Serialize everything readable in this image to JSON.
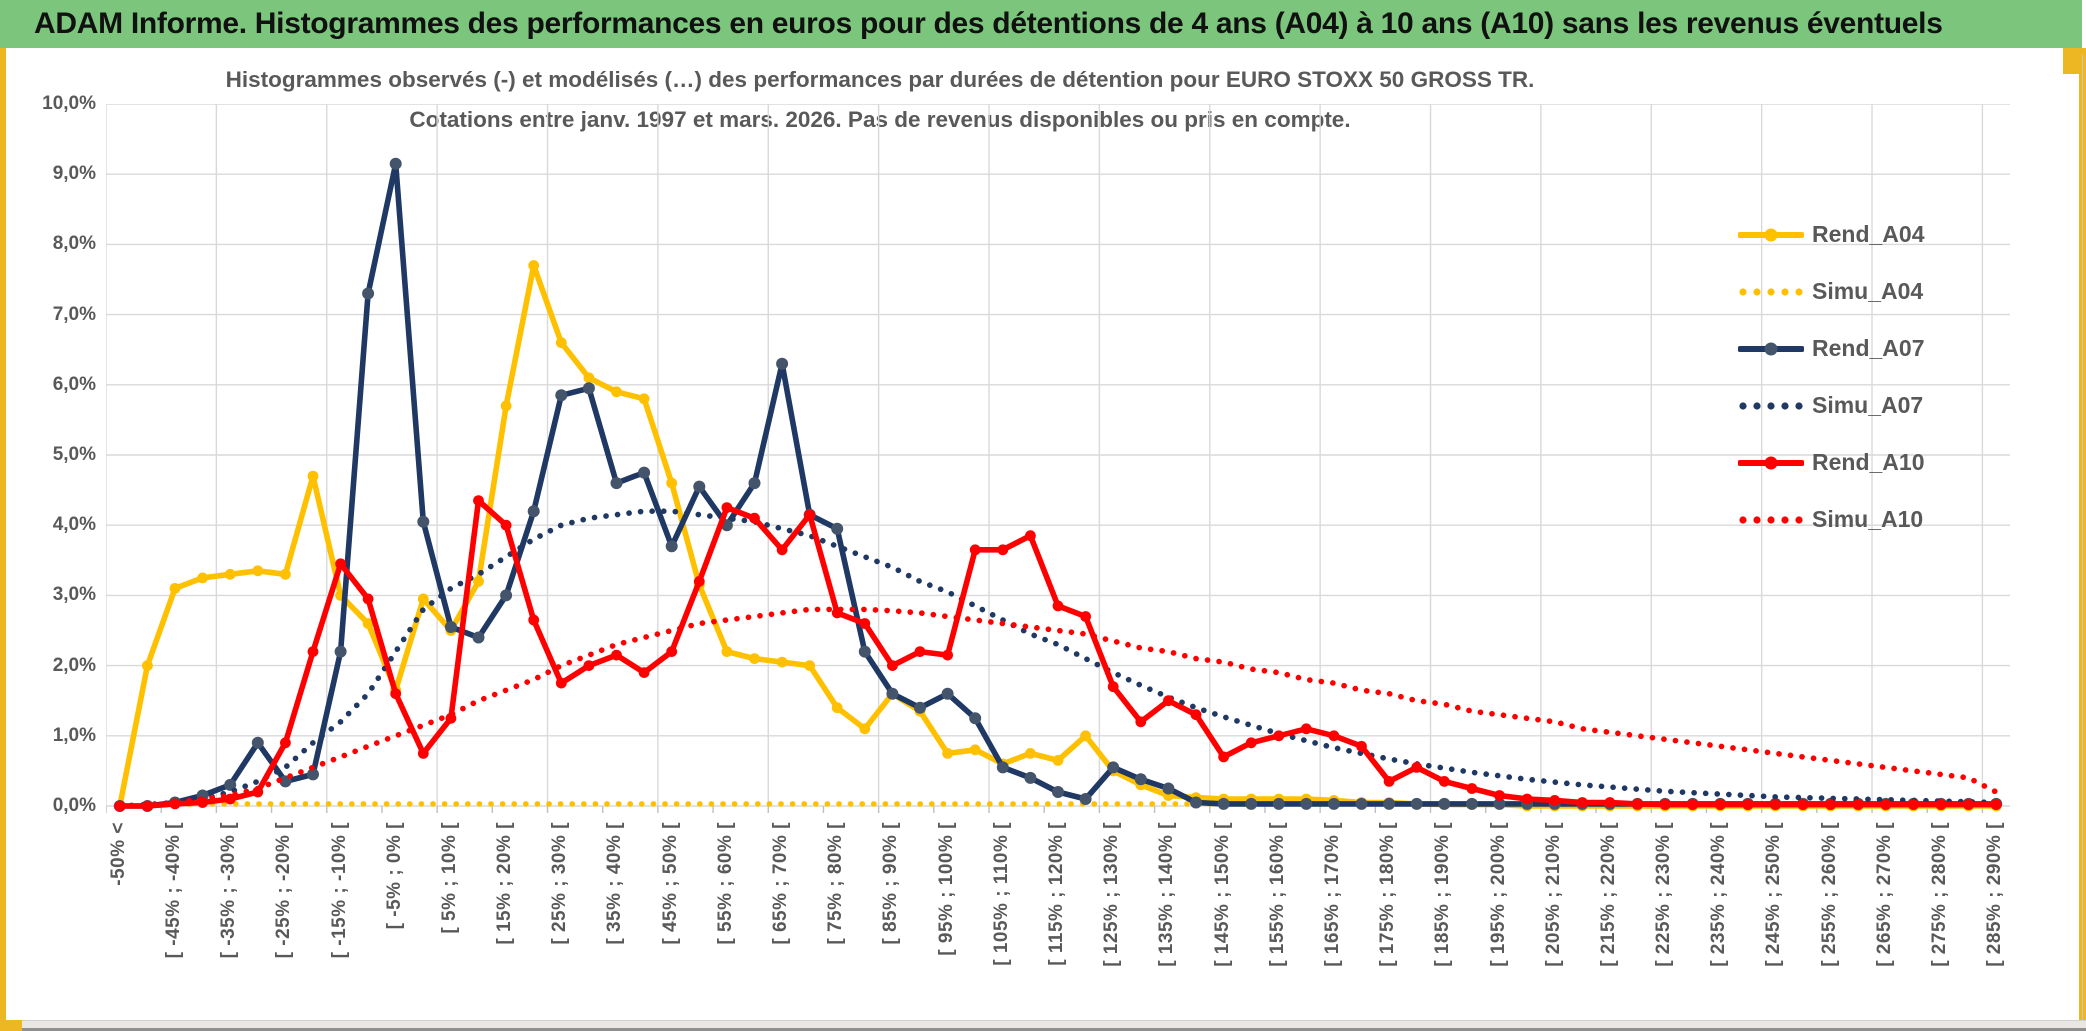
{
  "header": {
    "title": "ADAM Informe. Histogrammes des performances en euros pour des détentions de 4 ans (A04) à 10 ans (A10) sans les revenus éventuels"
  },
  "theme": {
    "banner_green": "#7cc57c",
    "edge_yellow": "#edb723",
    "gridline": "#d9d9d9",
    "axis_text": "#595959",
    "bottombar_gray": "#e9e7e4"
  },
  "chart_data": {
    "type": "line",
    "title_line1": "Histogrammes observés (-) et modélisés (…) des performances par durées de détention pour EURO STOXX 50 GROSS TR.",
    "title_line2": "Cotations entre janv. 1997 et mars. 2026. Pas de revenus disponibles ou pris en compte.",
    "ylim": [
      0,
      10
    ],
    "grid": true,
    "legend_position": "right",
    "y_tick_labels": [
      "10,0%",
      "9,0%",
      "8,0%",
      "7,0%",
      "6,0%",
      "5,0%",
      "4,0%",
      "3,0%",
      "2,0%",
      "1,0%",
      "0,0%"
    ],
    "x_tick_labels": [
      "-50% <",
      "[ -45% ; -40% [",
      "[ -35% ; -30% [",
      "[ -25% ; -20% [",
      "[ -15% ; -10% [",
      "[ -5% ; 0% [",
      "[ 5% ; 10% [",
      "[ 15% ; 20% [",
      "[ 25% ; 30% [",
      "[ 35% ; 40% [",
      "[ 45% ; 50% [",
      "[ 55% ; 60% [",
      "[ 65% ; 70% [",
      "[ 75% ; 80% [",
      "[ 85% ; 90% [",
      "[ 95% ; 100% [",
      "[ 105% ; 110% [",
      "[ 115% ; 120% [",
      "[ 125% ; 130% [",
      "[ 135% ; 140% [",
      "[ 145% ; 150% [",
      "[ 155% ; 160% [",
      "[ 165% ; 170% [",
      "[ 175% ; 180% [",
      "[ 185% ; 190% [",
      "[ 195% ; 200% [",
      "[ 205% ; 210% [",
      "[ 215% ; 220% [",
      "[ 225% ; 230% [",
      "[ 235% ; 240% [",
      "[ 245% ; 250% [",
      "[ 255% ; 260% [",
      "[ 265% ; 270% [",
      "[ 275% ; 280% [",
      "[ 285% ; 290% ["
    ],
    "bins": 69,
    "series": [
      {
        "name": "Rend_A04",
        "style": "solid",
        "color": "#FFC000",
        "marker_color": "#FFC000",
        "values": [
          0,
          2.0,
          3.1,
          3.25,
          3.3,
          3.35,
          3.3,
          4.7,
          3.0,
          2.6,
          1.65,
          2.95,
          2.5,
          3.2,
          5.7,
          7.7,
          6.6,
          6.1,
          5.9,
          5.8,
          4.6,
          3.15,
          2.2,
          2.1,
          2.05,
          2.0,
          1.4,
          1.1,
          1.6,
          1.35,
          0.75,
          0.8,
          0.6,
          0.75,
          0.65,
          1.0,
          0.5,
          0.3,
          0.15,
          0.12,
          0.1,
          0.1,
          0.1,
          0.1,
          0.08,
          0.05,
          0.05,
          0.03,
          0.02,
          0.02,
          0.02,
          0,
          0,
          0,
          0,
          0,
          0,
          0,
          0,
          0,
          0,
          0,
          0,
          0,
          0,
          0,
          0,
          0,
          0
        ]
      },
      {
        "name": "Simu_A04",
        "style": "dotted",
        "color": "#FFC000",
        "values": [
          0,
          0.01,
          0.02,
          0.03,
          0.03,
          0.03,
          0.03,
          0.03,
          0.03,
          0.03,
          0.03,
          0.03,
          0.03,
          0.03,
          0.03,
          0.03,
          0.03,
          0.03,
          0.03,
          0.03,
          0.03,
          0.03,
          0.03,
          0.03,
          0.03,
          0.03,
          0.03,
          0.03,
          0.03,
          0.03,
          0.03,
          0.03,
          0.03,
          0.03,
          0.03,
          0.03,
          0.03,
          0.03,
          0.03,
          0.03,
          0.03,
          0.03,
          0.03,
          0.03,
          0.03,
          0.03,
          0.03,
          0.03,
          0.03,
          0.03,
          0.03,
          0.03,
          0.03,
          0.03,
          0.03,
          0.03,
          0.03,
          0.03,
          0.03,
          0.03,
          0.03,
          0.03,
          0.03,
          0.03,
          0.03,
          0.03,
          0.03,
          0.03,
          0.03
        ]
      },
      {
        "name": "Rend_A07",
        "style": "solid",
        "color": "#1F3864",
        "marker_color": "#44546A",
        "values": [
          0,
          0,
          0.05,
          0.15,
          0.3,
          0.9,
          0.35,
          0.45,
          2.2,
          7.3,
          9.15,
          4.05,
          2.55,
          2.4,
          3.0,
          4.2,
          5.85,
          5.95,
          4.6,
          4.75,
          3.7,
          4.55,
          4.0,
          4.6,
          6.3,
          4.15,
          3.95,
          2.2,
          1.6,
          1.4,
          1.6,
          1.25,
          0.55,
          0.4,
          0.2,
          0.1,
          0.55,
          0.38,
          0.25,
          0.05,
          0.03,
          0.03,
          0.03,
          0.03,
          0.03,
          0.03,
          0.03,
          0.03,
          0.03,
          0.03,
          0.03,
          0.03,
          0.03,
          0.03,
          0.03,
          0.03,
          0.03,
          0.03,
          0.03,
          0.03,
          0.03,
          0.03,
          0.03,
          0.03,
          0.03,
          0.03,
          0.03,
          0.03,
          0.03
        ]
      },
      {
        "name": "Simu_A07",
        "style": "dotted",
        "color": "#1F3864",
        "values": [
          0,
          0.02,
          0.05,
          0.1,
          0.2,
          0.35,
          0.55,
          0.9,
          1.2,
          1.6,
          2.2,
          2.8,
          3.1,
          3.3,
          3.55,
          3.8,
          4.0,
          4.1,
          4.15,
          4.2,
          4.2,
          4.15,
          4.1,
          4.05,
          3.95,
          3.85,
          3.7,
          3.55,
          3.4,
          3.2,
          3.05,
          2.85,
          2.65,
          2.45,
          2.3,
          2.1,
          1.9,
          1.72,
          1.55,
          1.4,
          1.27,
          1.15,
          1.03,
          0.93,
          0.83,
          0.75,
          0.67,
          0.6,
          0.54,
          0.48,
          0.43,
          0.38,
          0.34,
          0.3,
          0.27,
          0.24,
          0.21,
          0.19,
          0.17,
          0.15,
          0.13,
          0.12,
          0.11,
          0.1,
          0.09,
          0.08,
          0.07,
          0.06,
          0.05
        ]
      },
      {
        "name": "Rend_A10",
        "style": "solid",
        "color": "#FF0000",
        "marker_color": "#FF0000",
        "values": [
          0,
          0,
          0.03,
          0.05,
          0.1,
          0.2,
          0.9,
          2.2,
          3.45,
          2.95,
          1.6,
          0.75,
          1.25,
          4.35,
          4.0,
          2.65,
          1.75,
          2.0,
          2.15,
          1.9,
          2.2,
          3.2,
          4.25,
          4.1,
          3.65,
          4.15,
          2.75,
          2.6,
          2.0,
          2.2,
          2.15,
          3.65,
          3.65,
          3.85,
          2.85,
          2.7,
          1.7,
          1.2,
          1.5,
          1.3,
          0.7,
          0.9,
          1.0,
          1.1,
          1.0,
          0.85,
          0.35,
          0.55,
          0.35,
          0.25,
          0.15,
          0.1,
          0.08,
          0.05,
          0.05,
          0.03,
          0.02,
          0.02,
          0.02,
          0.02,
          0.02,
          0.02,
          0.02,
          0.02,
          0.02,
          0.02,
          0.02,
          0.02,
          0.02
        ]
      },
      {
        "name": "Simu_A10",
        "style": "dotted",
        "color": "#FF0000",
        "values": [
          0,
          0.01,
          0.05,
          0.1,
          0.15,
          0.25,
          0.4,
          0.55,
          0.7,
          0.85,
          1.0,
          1.15,
          1.3,
          1.5,
          1.65,
          1.8,
          2.0,
          2.15,
          2.3,
          2.4,
          2.5,
          2.6,
          2.65,
          2.7,
          2.75,
          2.8,
          2.8,
          2.8,
          2.78,
          2.75,
          2.7,
          2.65,
          2.6,
          2.55,
          2.5,
          2.45,
          2.35,
          2.25,
          2.2,
          2.1,
          2.05,
          1.95,
          1.9,
          1.8,
          1.75,
          1.65,
          1.6,
          1.5,
          1.45,
          1.35,
          1.3,
          1.25,
          1.2,
          1.1,
          1.05,
          1.0,
          0.95,
          0.9,
          0.85,
          0.8,
          0.75,
          0.7,
          0.65,
          0.6,
          0.55,
          0.5,
          0.45,
          0.4,
          0.2
        ]
      }
    ]
  }
}
